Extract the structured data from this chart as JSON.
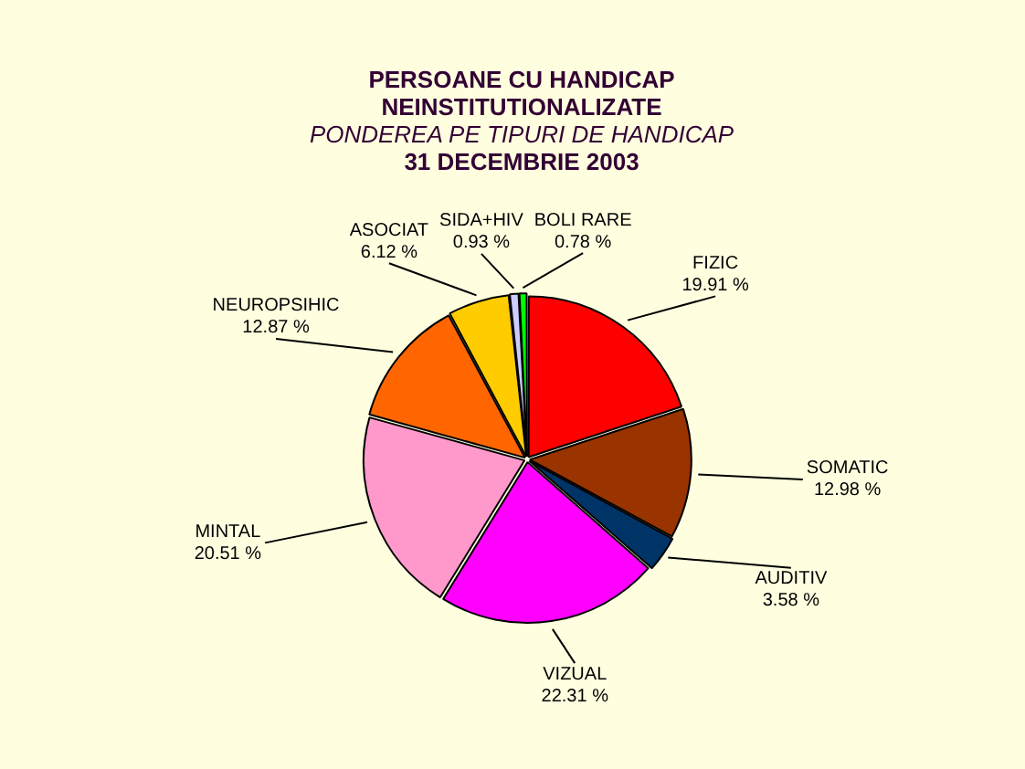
{
  "chart_data": {
    "type": "pie",
    "title": "PERSOANE CU HANDICAP\nNEINSTITUTIONALIZATE",
    "subtitle": "PONDEREA PE TIPURI DE HANDICAP\n31 DECEMBRIE 2003",
    "categories": [
      "FIZIC",
      "SOMATIC",
      "AUDITIV",
      "VIZUAL",
      "MINTAL",
      "NEUROPSIHIC",
      "ASOCIAT",
      "SIDA+HIV",
      "BOLI RARE"
    ],
    "values": [
      19.91,
      12.98,
      3.58,
      22.31,
      20.51,
      12.87,
      6.12,
      0.93,
      0.78
    ],
    "value_labels": [
      "19.91 %",
      "12.98 %",
      "3.58 %",
      "22.31 %",
      "20.51 %",
      "12.87 %",
      "6.12 %",
      "0.93 %",
      "0.78 %"
    ],
    "colors": [
      "#ff0000",
      "#993300",
      "#003366",
      "#ff00ff",
      "#ff99cc",
      "#ff6600",
      "#ffcc00",
      "#ccccff",
      "#00ff00"
    ],
    "legend": false
  }
}
